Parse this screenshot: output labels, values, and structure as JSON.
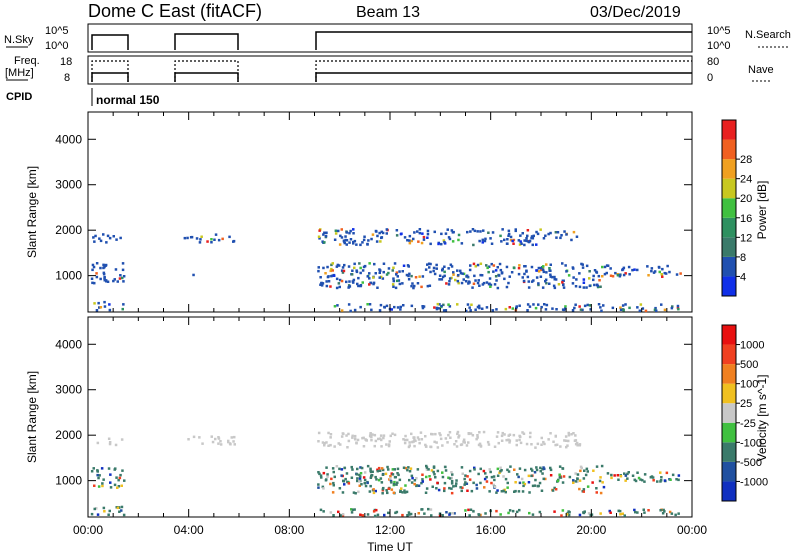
{
  "header": {
    "site": "Dome C East (fitACF)",
    "beam": "Beam 13",
    "date": "03/Dec/2019"
  },
  "status_panels": {
    "nsky_label": "N.Sky",
    "nsky_ticks": [
      "10^5",
      "10^0"
    ],
    "nsearch_label": "N.Search",
    "nsearch_ticks": [
      "10^5",
      "10^0"
    ],
    "freq_label_1": "Freq.",
    "freq_label_2": "[MHz]",
    "freq_ticks": [
      "18",
      "8"
    ],
    "nave_label": "Nave",
    "nave_ticks": [
      "80",
      "0"
    ],
    "cpid_label": "CPID",
    "cpid_value": "normal 150"
  },
  "chart_data": [
    {
      "type": "heatmap",
      "title": "",
      "xlabel": "",
      "ylabel": "Slant Range [km]",
      "yticks": [
        "1000",
        "2000",
        "3000",
        "4000"
      ],
      "ylim": [
        200,
        4600
      ],
      "xlim": [
        0,
        24
      ],
      "colorbar": {
        "label": "Power [dB]",
        "ticks": [
          "4",
          "8",
          "12",
          "16",
          "20",
          "24",
          "28"
        ],
        "colors": [
          "#1030e8",
          "#2050b0",
          "#3a7a6a",
          "#2e9060",
          "#40c040",
          "#c8c820",
          "#f0a020",
          "#f06020",
          "#e82020"
        ]
      },
      "echo_bands": [
        {
          "t0": 0.1,
          "t1": 1.4,
          "r0": 1750,
          "r1": 1950
        },
        {
          "t0": 0.1,
          "t1": 1.4,
          "r0": 850,
          "r1": 1300
        },
        {
          "t0": 0.1,
          "t1": 1.4,
          "r0": 250,
          "r1": 450
        },
        {
          "t0": 3.8,
          "t1": 5.8,
          "r0": 1750,
          "r1": 1950
        },
        {
          "t0": 4.0,
          "t1": 5.0,
          "r0": 1000,
          "r1": 1050
        },
        {
          "t0": 9.1,
          "t1": 19.5,
          "r0": 1700,
          "r1": 2050
        },
        {
          "t0": 9.1,
          "t1": 20.5,
          "r0": 750,
          "r1": 1300
        },
        {
          "t0": 20.5,
          "t1": 23.5,
          "r0": 1000,
          "r1": 1250
        },
        {
          "t0": 9.1,
          "t1": 23.5,
          "r0": 250,
          "r1": 400
        }
      ]
    },
    {
      "type": "heatmap",
      "title": "",
      "xlabel": "Time UT",
      "ylabel": "Slant Range [km]",
      "xticks": [
        "00:00",
        "04:00",
        "08:00",
        "12:00",
        "16:00",
        "20:00",
        "00:00"
      ],
      "yticks": [
        "1000",
        "2000",
        "3000",
        "4000"
      ],
      "ylim": [
        200,
        4600
      ],
      "xlim": [
        0,
        24
      ],
      "colorbar": {
        "label": "Velocity [m s^-1]",
        "ticks": [
          "1000",
          "500",
          "100",
          "25",
          "-25",
          "-100",
          "-500",
          "-1000"
        ],
        "colors": [
          "#1030c0",
          "#2050a0",
          "#3a7a6a",
          "#40c040",
          "#c8c8c8",
          "#f0c020",
          "#f08020",
          "#f04020",
          "#e81010"
        ]
      },
      "echo_bands": [
        {
          "t0": 0.1,
          "t1": 1.4,
          "r0": 1800,
          "r1": 1950
        },
        {
          "t0": 0.1,
          "t1": 1.4,
          "r0": 850,
          "r1": 1300
        },
        {
          "t0": 0.1,
          "t1": 1.4,
          "r0": 250,
          "r1": 450
        },
        {
          "t0": 3.8,
          "t1": 5.8,
          "r0": 1800,
          "r1": 2000
        },
        {
          "t0": 9.1,
          "t1": 19.5,
          "r0": 1750,
          "r1": 2100
        },
        {
          "t0": 9.1,
          "t1": 20.5,
          "r0": 750,
          "r1": 1350
        },
        {
          "t0": 20.5,
          "t1": 23.5,
          "r0": 1000,
          "r1": 1250
        },
        {
          "t0": 9.1,
          "t1": 23.5,
          "r0": 250,
          "r1": 400
        }
      ]
    }
  ]
}
